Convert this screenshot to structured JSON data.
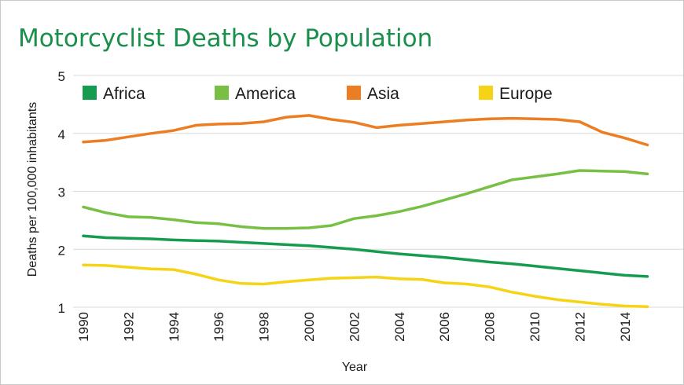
{
  "chart_data": {
    "type": "line",
    "title": "Motorcyclist Deaths by Population",
    "xlabel": "Year",
    "ylabel": "Deaths per 100,000 inhabitants",
    "ylim": [
      1,
      5
    ],
    "yticks": [
      1,
      2,
      3,
      4,
      5
    ],
    "xticks": [
      1990,
      1992,
      1994,
      1996,
      1998,
      2000,
      2002,
      2004,
      2006,
      2008,
      2010,
      2012,
      2014
    ],
    "grid": true,
    "legend_position": "top",
    "x": [
      1990,
      1991,
      1992,
      1993,
      1994,
      1995,
      1996,
      1997,
      1998,
      1999,
      2000,
      2001,
      2002,
      2003,
      2004,
      2005,
      2006,
      2007,
      2008,
      2009,
      2010,
      2011,
      2012,
      2013,
      2014,
      2015
    ],
    "series": [
      {
        "name": "Africa",
        "color": "#169c4e",
        "values": [
          2.23,
          2.2,
          2.19,
          2.18,
          2.16,
          2.15,
          2.14,
          2.12,
          2.1,
          2.08,
          2.06,
          2.03,
          2.0,
          1.96,
          1.92,
          1.89,
          1.86,
          1.82,
          1.78,
          1.75,
          1.71,
          1.67,
          1.63,
          1.59,
          1.55,
          1.53
        ]
      },
      {
        "name": "America",
        "color": "#77c043",
        "values": [
          2.73,
          2.63,
          2.56,
          2.55,
          2.51,
          2.46,
          2.44,
          2.39,
          2.36,
          2.36,
          2.37,
          2.41,
          2.53,
          2.58,
          2.65,
          2.74,
          2.85,
          2.96,
          3.08,
          3.2,
          3.25,
          3.3,
          3.36,
          3.35,
          3.34,
          3.3
        ]
      },
      {
        "name": "Asia",
        "color": "#ed7d23",
        "values": [
          3.85,
          3.88,
          3.94,
          4.0,
          4.05,
          4.14,
          4.16,
          4.17,
          4.2,
          4.28,
          4.31,
          4.24,
          4.19,
          4.1,
          4.14,
          4.17,
          4.2,
          4.23,
          4.25,
          4.26,
          4.25,
          4.24,
          4.2,
          4.02,
          3.92,
          3.8
        ]
      },
      {
        "name": "Europe",
        "color": "#f6d315",
        "values": [
          1.73,
          1.72,
          1.69,
          1.66,
          1.65,
          1.57,
          1.47,
          1.41,
          1.4,
          1.44,
          1.47,
          1.5,
          1.51,
          1.52,
          1.49,
          1.48,
          1.42,
          1.4,
          1.35,
          1.26,
          1.19,
          1.13,
          1.09,
          1.05,
          1.02,
          1.01
        ]
      }
    ]
  }
}
